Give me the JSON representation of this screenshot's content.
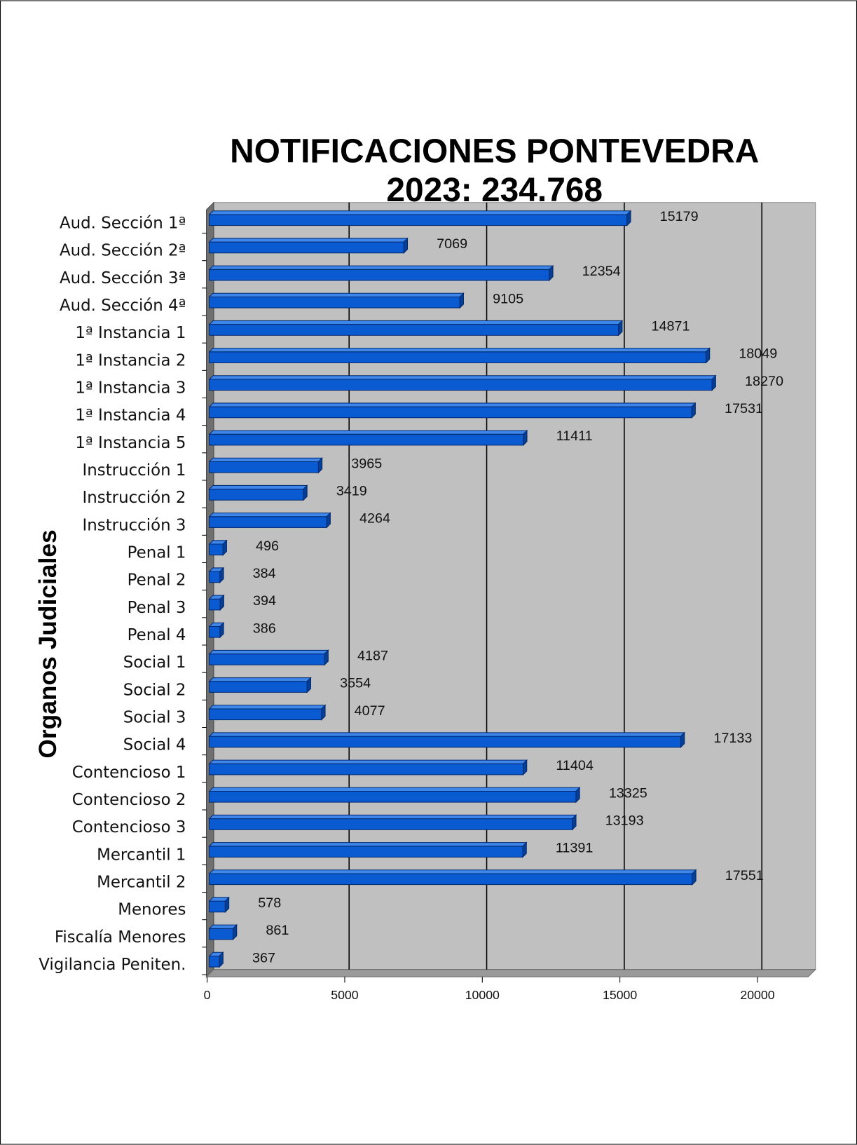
{
  "chart_data": {
    "type": "bar",
    "orientation": "horizontal",
    "title": [
      "NOTIFICACIONES PONTEVEDRA",
      "2023: 234.768"
    ],
    "y_label": "Organos Judiciales",
    "categories": [
      "Aud. Sección 1ª",
      "Aud. Sección 2ª",
      "Aud. Sección 3ª",
      "Aud. Sección 4ª",
      "1ª Instancia 1",
      "1ª Instancia 2",
      "1ª Instancia 3",
      "1ª Instancia 4",
      "1ª Instancia 5",
      "Instrucción 1",
      "Instrucción 2",
      "Instrucción 3",
      "Penal 1",
      "Penal 2",
      "Penal 3",
      "Penal 4",
      "Social 1",
      "Social 2",
      "Social 3",
      "Social 4",
      "Contencioso 1",
      "Contencioso 2",
      "Contencioso 3",
      "Mercantil 1",
      "Mercantil 2",
      "Menores",
      "Fiscalía Menores",
      "Vigilancia Peniten."
    ],
    "values": [
      15179,
      7069,
      12354,
      9105,
      14871,
      18049,
      18270,
      17531,
      11411,
      3965,
      3419,
      4264,
      496,
      384,
      394,
      386,
      4187,
      3554,
      4077,
      17133,
      11404,
      13325,
      13193,
      11391,
      17551,
      578,
      861,
      367
    ],
    "color": "#0a5ad2",
    "xlim": [
      0,
      22000
    ],
    "xticks": [
      0,
      5000,
      10000,
      15000,
      20000
    ],
    "grid": true
  }
}
